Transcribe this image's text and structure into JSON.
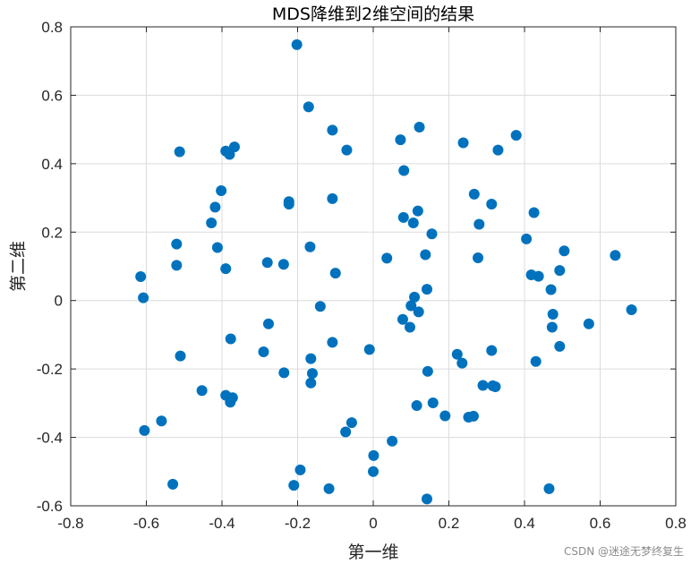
{
  "colors": {
    "marker": "#0072BD",
    "grid": "#dcdcdc",
    "axis": "#262626"
  },
  "watermark": "CSDN @迷途无梦终复生",
  "chart_data": {
    "type": "scatter",
    "title": "MDS降维到2维空间的结果",
    "xlabel": "第一维",
    "ylabel": "第二维",
    "xlim": [
      -0.8,
      0.8
    ],
    "ylim": [
      -0.6,
      0.8
    ],
    "xticks": [
      -0.8,
      -0.6,
      -0.4,
      -0.2,
      0,
      0.2,
      0.4,
      0.6,
      0.8
    ],
    "yticks": [
      -0.6,
      -0.4,
      -0.2,
      0,
      0.2,
      0.4,
      0.6,
      0.8
    ],
    "xtick_labels": [
      "-0.8",
      "-0.6",
      "-0.4",
      "-0.2",
      "0",
      "0.2",
      "0.4",
      "0.6",
      "0.8"
    ],
    "ytick_labels": [
      "-0.6",
      "-0.4",
      "-0.2",
      "0",
      "0.2",
      "0.4",
      "0.6",
      "0.8"
    ],
    "grid": true,
    "box": true,
    "points": [
      [
        -0.202,
        0.748
      ],
      [
        -0.171,
        0.566
      ],
      [
        -0.108,
        0.498
      ],
      [
        -0.07,
        0.44
      ],
      [
        -0.512,
        0.435
      ],
      [
        -0.39,
        0.437
      ],
      [
        -0.367,
        0.449
      ],
      [
        -0.38,
        0.427
      ],
      [
        0.072,
        0.47
      ],
      [
        0.122,
        0.507
      ],
      [
        0.238,
        0.461
      ],
      [
        0.33,
        0.44
      ],
      [
        0.378,
        0.483
      ],
      [
        0.081,
        0.38
      ],
      [
        -0.402,
        0.321
      ],
      [
        -0.418,
        0.273
      ],
      [
        -0.428,
        0.227
      ],
      [
        -0.412,
        0.155
      ],
      [
        -0.52,
        0.165
      ],
      [
        -0.52,
        0.103
      ],
      [
        -0.39,
        0.093
      ],
      [
        -0.223,
        0.289
      ],
      [
        -0.223,
        0.282
      ],
      [
        -0.108,
        0.298
      ],
      [
        -0.167,
        0.157
      ],
      [
        -0.28,
        0.111
      ],
      [
        -0.237,
        0.106
      ],
      [
        -0.1,
        0.08
      ],
      [
        0.267,
        0.311
      ],
      [
        0.313,
        0.282
      ],
      [
        0.425,
        0.257
      ],
      [
        0.118,
        0.262
      ],
      [
        0.08,
        0.243
      ],
      [
        0.106,
        0.227
      ],
      [
        0.28,
        0.223
      ],
      [
        0.155,
        0.195
      ],
      [
        0.405,
        0.18
      ],
      [
        0.505,
        0.145
      ],
      [
        0.64,
        0.132
      ],
      [
        0.138,
        0.134
      ],
      [
        0.277,
        0.125
      ],
      [
        0.036,
        0.124
      ],
      [
        0.418,
        0.075
      ],
      [
        0.437,
        0.071
      ],
      [
        0.493,
        0.088
      ],
      [
        0.47,
        0.032
      ],
      [
        -0.615,
        0.07
      ],
      [
        -0.608,
        0.008
      ],
      [
        0.142,
        0.033
      ],
      [
        0.109,
        0.01
      ],
      [
        0.1,
        -0.015
      ],
      [
        0.12,
        -0.033
      ],
      [
        -0.14,
        -0.017
      ],
      [
        -0.277,
        -0.068
      ],
      [
        0.078,
        -0.055
      ],
      [
        0.097,
        -0.078
      ],
      [
        0.475,
        -0.04
      ],
      [
        0.473,
        -0.078
      ],
      [
        0.57,
        -0.068
      ],
      [
        0.683,
        -0.027
      ],
      [
        -0.377,
        -0.112
      ],
      [
        -0.108,
        -0.122
      ],
      [
        -0.165,
        -0.17
      ],
      [
        -0.29,
        -0.15
      ],
      [
        -0.01,
        -0.143
      ],
      [
        0.222,
        -0.157
      ],
      [
        0.235,
        -0.183
      ],
      [
        0.313,
        -0.146
      ],
      [
        0.493,
        -0.134
      ],
      [
        0.43,
        -0.178
      ],
      [
        -0.51,
        -0.162
      ],
      [
        -0.236,
        -0.211
      ],
      [
        -0.161,
        -0.213
      ],
      [
        -0.165,
        -0.241
      ],
      [
        0.144,
        -0.207
      ],
      [
        -0.453,
        -0.263
      ],
      [
        -0.39,
        -0.277
      ],
      [
        -0.372,
        -0.284
      ],
      [
        -0.378,
        -0.297
      ],
      [
        0.29,
        -0.248
      ],
      [
        0.316,
        -0.249
      ],
      [
        0.323,
        -0.252
      ],
      [
        0.158,
        -0.299
      ],
      [
        0.115,
        -0.307
      ],
      [
        0.19,
        -0.337
      ],
      [
        0.252,
        -0.341
      ],
      [
        0.265,
        -0.338
      ],
      [
        -0.56,
        -0.352
      ],
      [
        -0.605,
        -0.38
      ],
      [
        -0.057,
        -0.357
      ],
      [
        -0.073,
        -0.384
      ],
      [
        0.05,
        -0.411
      ],
      [
        0.001,
        -0.453
      ],
      [
        0.0,
        -0.5
      ],
      [
        -0.193,
        -0.495
      ],
      [
        -0.53,
        -0.537
      ],
      [
        -0.21,
        -0.54
      ],
      [
        -0.117,
        -0.55
      ],
      [
        0.465,
        -0.55
      ],
      [
        0.142,
        -0.58
      ]
    ]
  }
}
